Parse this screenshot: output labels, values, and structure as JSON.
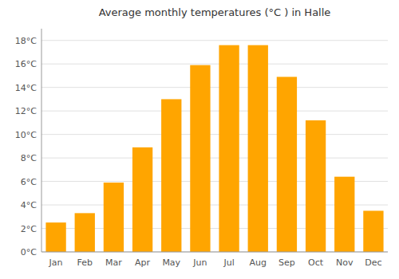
{
  "chart_data": {
    "type": "bar",
    "title": "Average monthly temperatures (°C ) in Halle",
    "categories": [
      "Jan",
      "Feb",
      "Mar",
      "Apr",
      "May",
      "Jun",
      "Jul",
      "Aug",
      "Sep",
      "Oct",
      "Nov",
      "Dec"
    ],
    "values": [
      2.5,
      3.3,
      5.9,
      8.9,
      13.0,
      15.9,
      17.6,
      17.6,
      14.9,
      11.2,
      6.4,
      3.5
    ],
    "color": "#FFA500",
    "ylim": [
      0,
      19
    ],
    "yticks": [
      {
        "value": 0,
        "label": "0°C"
      },
      {
        "value": 2,
        "label": "2°C"
      },
      {
        "value": 4,
        "label": "4°C"
      },
      {
        "value": 6,
        "label": "6°C"
      },
      {
        "value": 8,
        "label": "8°C"
      },
      {
        "value": 10,
        "label": "10°C"
      },
      {
        "value": 12,
        "label": "12°C"
      },
      {
        "value": 14,
        "label": "14°C"
      },
      {
        "value": 16,
        "label": "16°C"
      },
      {
        "value": 18,
        "label": "18°C"
      }
    ],
    "grid": true
  }
}
